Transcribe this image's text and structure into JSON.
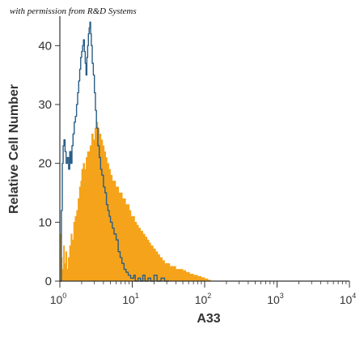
{
  "credit_text": "with permission from R&D Systems",
  "chart_data": {
    "type": "histogram",
    "xlabel": "A33",
    "ylabel": "Relative Cell Number",
    "x_scale": "log",
    "xlim": [
      1,
      10000
    ],
    "ylim": [
      0,
      45
    ],
    "y_ticks": [
      0,
      10,
      20,
      30,
      40
    ],
    "x_ticks": [
      {
        "base": "10",
        "exp": "0"
      },
      {
        "base": "10",
        "exp": "1"
      },
      {
        "base": "10",
        "exp": "2"
      },
      {
        "base": "10",
        "exp": "3"
      },
      {
        "base": "10",
        "exp": "4"
      }
    ],
    "series": [
      {
        "style": "filled",
        "color": "#f5a31a",
        "points": [
          [
            1.0,
            3
          ],
          [
            1.02,
            8
          ],
          [
            1.05,
            4
          ],
          [
            1.08,
            2
          ],
          [
            1.12,
            6
          ],
          [
            1.16,
            3
          ],
          [
            1.2,
            5
          ],
          [
            1.25,
            2
          ],
          [
            1.3,
            4
          ],
          [
            1.36,
            6
          ],
          [
            1.42,
            8
          ],
          [
            1.48,
            7
          ],
          [
            1.55,
            10
          ],
          [
            1.62,
            11
          ],
          [
            1.7,
            12
          ],
          [
            1.78,
            14
          ],
          [
            1.86,
            16
          ],
          [
            1.94,
            17
          ],
          [
            2.0,
            19
          ],
          [
            2.1,
            20
          ],
          [
            2.2,
            19
          ],
          [
            2.3,
            21
          ],
          [
            2.4,
            22
          ],
          [
            2.5,
            22
          ],
          [
            2.6,
            23
          ],
          [
            2.75,
            25
          ],
          [
            2.9,
            24
          ],
          [
            3.05,
            26
          ],
          [
            3.2,
            27
          ],
          [
            3.35,
            26
          ],
          [
            3.5,
            25
          ],
          [
            3.7,
            24
          ],
          [
            3.9,
            23
          ],
          [
            4.1,
            22
          ],
          [
            4.3,
            21
          ],
          [
            4.5,
            20
          ],
          [
            4.75,
            19
          ],
          [
            5.0,
            18
          ],
          [
            5.3,
            17
          ],
          [
            5.6,
            17
          ],
          [
            5.9,
            16
          ],
          [
            6.2,
            16
          ],
          [
            6.5,
            15
          ],
          [
            6.9,
            15
          ],
          [
            7.3,
            14
          ],
          [
            7.7,
            14
          ],
          [
            8.1,
            13
          ],
          [
            8.6,
            13
          ],
          [
            9.1,
            12
          ],
          [
            9.6,
            11
          ],
          [
            10.2,
            11
          ],
          [
            10.8,
            10
          ],
          [
            11.5,
            9.5
          ],
          [
            12.2,
            9
          ],
          [
            13,
            8.5
          ],
          [
            14,
            8
          ],
          [
            15,
            7.5
          ],
          [
            16,
            7
          ],
          [
            17,
            6.5
          ],
          [
            18,
            6
          ],
          [
            19.5,
            5.5
          ],
          [
            21,
            5
          ],
          [
            22.5,
            4.5
          ],
          [
            24,
            4
          ],
          [
            26,
            3.5
          ],
          [
            28,
            3
          ],
          [
            30,
            3
          ],
          [
            33,
            2.5
          ],
          [
            36,
            2.5
          ],
          [
            40,
            2
          ],
          [
            45,
            2
          ],
          [
            50,
            1.8
          ],
          [
            55,
            1.5
          ],
          [
            62,
            1.2
          ],
          [
            70,
            1
          ],
          [
            80,
            0.8
          ],
          [
            90,
            0.6
          ],
          [
            100,
            0.4
          ],
          [
            110,
            0.2
          ],
          [
            120,
            0
          ]
        ]
      },
      {
        "style": "outline",
        "color": "#2a5e86",
        "points": [
          [
            1.0,
            0
          ],
          [
            1.05,
            12
          ],
          [
            1.08,
            20
          ],
          [
            1.11,
            23
          ],
          [
            1.14,
            24
          ],
          [
            1.18,
            22
          ],
          [
            1.22,
            20
          ],
          [
            1.27,
            21
          ],
          [
            1.32,
            19
          ],
          [
            1.37,
            22
          ],
          [
            1.42,
            20
          ],
          [
            1.47,
            23
          ],
          [
            1.52,
            25
          ],
          [
            1.58,
            27
          ],
          [
            1.64,
            28
          ],
          [
            1.7,
            30
          ],
          [
            1.76,
            32
          ],
          [
            1.82,
            34
          ],
          [
            1.88,
            36
          ],
          [
            1.94,
            38
          ],
          [
            2.0,
            39
          ],
          [
            2.06,
            40
          ],
          [
            2.12,
            41
          ],
          [
            2.18,
            39
          ],
          [
            2.24,
            37
          ],
          [
            2.3,
            35
          ],
          [
            2.36,
            38
          ],
          [
            2.42,
            40
          ],
          [
            2.48,
            42
          ],
          [
            2.54,
            43
          ],
          [
            2.6,
            44
          ],
          [
            2.66,
            42
          ],
          [
            2.72,
            40
          ],
          [
            2.8,
            37
          ],
          [
            2.9,
            35
          ],
          [
            3.0,
            32
          ],
          [
            3.1,
            29
          ],
          [
            3.2,
            26
          ],
          [
            3.35,
            23
          ],
          [
            3.5,
            21
          ],
          [
            3.65,
            19
          ],
          [
            3.8,
            18
          ],
          [
            4.0,
            16
          ],
          [
            4.2,
            15
          ],
          [
            4.4,
            13
          ],
          [
            4.6,
            12
          ],
          [
            4.8,
            11
          ],
          [
            5.0,
            10
          ],
          [
            5.3,
            9
          ],
          [
            5.6,
            8
          ],
          [
            6.0,
            7
          ],
          [
            6.4,
            5
          ],
          [
            6.8,
            4
          ],
          [
            7.2,
            3
          ],
          [
            7.7,
            2
          ],
          [
            8.2,
            1.5
          ],
          [
            8.8,
            1
          ],
          [
            9.5,
            0.5
          ],
          [
            10,
            0.5
          ],
          [
            10.5,
            1
          ],
          [
            11,
            0
          ],
          [
            12,
            0.5
          ],
          [
            13,
            0
          ],
          [
            14,
            1
          ],
          [
            15,
            0
          ],
          [
            16.5,
            0.5
          ],
          [
            18,
            0
          ],
          [
            20,
            1
          ],
          [
            22,
            0
          ],
          [
            25,
            0.5
          ],
          [
            28,
            0
          ],
          [
            32,
            0
          ]
        ]
      }
    ]
  }
}
